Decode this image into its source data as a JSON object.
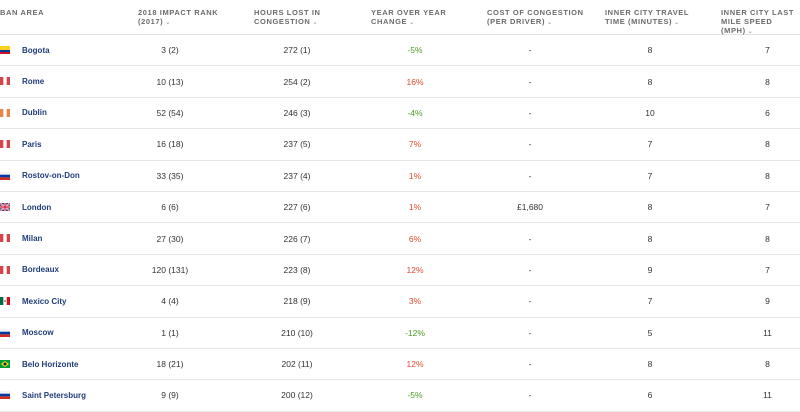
{
  "headers": {
    "city": [
      "BAN AREA",
      ""
    ],
    "rank": [
      "2018 IMPACT RANK",
      "(2017)"
    ],
    "hours": [
      "HOURS LOST IN",
      "CONGESTION"
    ],
    "yoy": [
      "YEAR OVER YEAR",
      "CHANGE"
    ],
    "cost": [
      "COST OF CONGESTION",
      "(PER DRIVER)"
    ],
    "time": [
      "INNER CITY TRAVEL",
      "TIME (MINUTES)"
    ],
    "speed": [
      "INNER CITY LAST",
      "MILE SPEED (MPH)"
    ]
  },
  "sort_arrow": "⌄",
  "colors": {
    "negative_change": "#4d9a1f",
    "positive_change": "#e04a2f",
    "city_link": "#1f3d7a"
  },
  "rows": [
    {
      "flag": "colombia",
      "city": "Bogota",
      "rank": "3 (2)",
      "hours": "272 (1)",
      "yoy": "-5%",
      "yoy_sign": "neg",
      "cost": "-",
      "time": "8",
      "speed": "7"
    },
    {
      "flag": "italy",
      "city": "Rome",
      "rank": "10 (13)",
      "hours": "254 (2)",
      "yoy": "16%",
      "yoy_sign": "pos",
      "cost": "-",
      "time": "8",
      "speed": "8"
    },
    {
      "flag": "ireland",
      "city": "Dublin",
      "rank": "52 (54)",
      "hours": "246 (3)",
      "yoy": "-4%",
      "yoy_sign": "neg",
      "cost": "-",
      "time": "10",
      "speed": "6"
    },
    {
      "flag": "france",
      "city": "Paris",
      "rank": "16 (18)",
      "hours": "237 (5)",
      "yoy": "7%",
      "yoy_sign": "pos",
      "cost": "-",
      "time": "7",
      "speed": "8"
    },
    {
      "flag": "russia",
      "city": "Rostov-on-Don",
      "rank": "33 (35)",
      "hours": "237 (4)",
      "yoy": "1%",
      "yoy_sign": "pos",
      "cost": "-",
      "time": "7",
      "speed": "8"
    },
    {
      "flag": "uk",
      "city": "London",
      "rank": "6 (6)",
      "hours": "227 (6)",
      "yoy": "1%",
      "yoy_sign": "pos",
      "cost": "£1,680",
      "time": "8",
      "speed": "7"
    },
    {
      "flag": "italy",
      "city": "Milan",
      "rank": "27 (30)",
      "hours": "226 (7)",
      "yoy": "6%",
      "yoy_sign": "pos",
      "cost": "-",
      "time": "8",
      "speed": "8"
    },
    {
      "flag": "france",
      "city": "Bordeaux",
      "rank": "120 (131)",
      "hours": "223 (8)",
      "yoy": "12%",
      "yoy_sign": "pos",
      "cost": "-",
      "time": "9",
      "speed": "7"
    },
    {
      "flag": "mexico",
      "city": "Mexico City",
      "rank": "4 (4)",
      "hours": "218 (9)",
      "yoy": "3%",
      "yoy_sign": "pos",
      "cost": "-",
      "time": "7",
      "speed": "9"
    },
    {
      "flag": "russia",
      "city": "Moscow",
      "rank": "1 (1)",
      "hours": "210 (10)",
      "yoy": "-12%",
      "yoy_sign": "neg",
      "cost": "-",
      "time": "5",
      "speed": "11"
    },
    {
      "flag": "brazil",
      "city": "Belo Horizonte",
      "rank": "18 (21)",
      "hours": "202 (11)",
      "yoy": "12%",
      "yoy_sign": "pos",
      "cost": "-",
      "time": "8",
      "speed": "8"
    },
    {
      "flag": "russia",
      "city": "Saint Petersburg",
      "rank": "9 (9)",
      "hours": "200 (12)",
      "yoy": "-5%",
      "yoy_sign": "neg",
      "cost": "-",
      "time": "6",
      "speed": "11"
    }
  ]
}
